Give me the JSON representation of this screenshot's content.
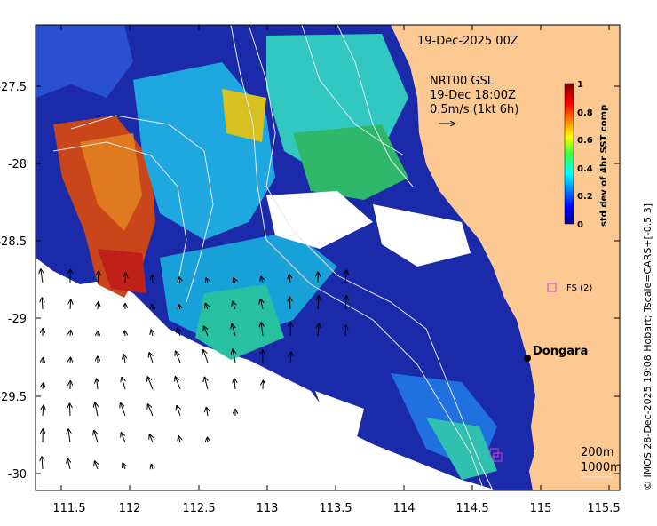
{
  "map": {
    "title": "19-Dec-2025 00Z",
    "product": "NRT00 GSL",
    "vector_time": "19-Dec 18:00Z",
    "vector_scale": "0.5m/s (1kt 6h)",
    "place": "Dongara",
    "marker_label": "FS (2)",
    "contours": [
      "200m",
      "1000m"
    ],
    "credit": "© IMOS 28-Dec-2025 19:08 Hobart; Tscale=CARS+[-0.5 3]",
    "colors": {
      "land": "#fcc993",
      "marker": "#d040d0",
      "contour": "#e8e8e8"
    }
  },
  "axes": {
    "x_ticks": [
      "111.5",
      "112",
      "112.5",
      "113",
      "113.5",
      "114",
      "114.5",
      "115",
      "115.5"
    ],
    "y_ticks": [
      "-27.5",
      "-28",
      "-28.5",
      "-29",
      "-29.5",
      "-30"
    ]
  },
  "colorbar": {
    "label": "std dev of 4hr SST comp",
    "ticks": [
      "1",
      "0.8",
      "0.6",
      "0.4",
      "0.2",
      "0"
    ],
    "colormap": "jet"
  }
}
